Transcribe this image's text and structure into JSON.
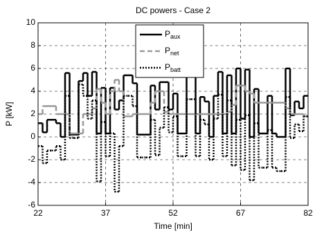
{
  "chart_data": {
    "type": "line",
    "title": "DC powers - Case 2",
    "x_label": "Time [min]",
    "y_label": "P [kW]",
    "drawstyle": "steps-post",
    "grid": true,
    "legend": "upper center",
    "x": [
      22,
      23,
      24,
      25,
      26,
      27,
      28,
      29,
      30,
      31,
      32,
      33,
      34,
      35,
      36,
      37,
      38,
      39,
      40,
      41,
      42,
      43,
      44,
      45,
      46,
      47,
      48,
      49,
      50,
      51,
      52,
      53,
      54,
      55,
      56,
      57,
      58,
      59,
      60,
      61,
      62,
      63,
      64,
      65,
      66,
      67,
      68,
      69,
      70,
      71,
      72,
      73,
      74,
      75,
      76,
      77,
      78,
      79,
      80,
      81,
      82
    ],
    "xlim": [
      22,
      82
    ],
    "xticks": [
      22,
      37,
      52,
      67,
      82
    ],
    "ylim": [
      -6,
      10
    ],
    "yticks": [
      -6,
      -4,
      -2,
      0,
      2,
      4,
      6,
      8,
      10
    ],
    "series": [
      {
        "name": "P",
        "name_sub": "aux",
        "color": "#000000",
        "style": "solid",
        "values": [
          1.2,
          0.4,
          1.5,
          1.5,
          1.2,
          0,
          5.6,
          0.2,
          0.2,
          4.9,
          5.6,
          3.6,
          5.7,
          0.3,
          4.3,
          0.3,
          4.3,
          2.4,
          3.2,
          5.4,
          5.4,
          4.7,
          0.2,
          0.2,
          0.2,
          4.5,
          2.4,
          4.8,
          4.8,
          2.4,
          3.8,
          0.3,
          0.3,
          5.3,
          5.3,
          0.3,
          3.5,
          3.1,
          0,
          3.6,
          5.7,
          0.3,
          5.4,
          0.3,
          6.0,
          1.6,
          5.9,
          0,
          4.2,
          0.3,
          0.3,
          3.6,
          0.3,
          0,
          0,
          6.0,
          1.9,
          3.1,
          2.5,
          3.6,
          3.6
        ]
      },
      {
        "name": "P",
        "name_sub": "net",
        "color": "#999999",
        "style": "dashed",
        "values": [
          2,
          2.7,
          2.7,
          2.7,
          2,
          2,
          2,
          0.3,
          0.3,
          0.3,
          2,
          2,
          2.5,
          4.2,
          3,
          2,
          4,
          5,
          4,
          1.8,
          1.8,
          2,
          2,
          2,
          2,
          3,
          4,
          4,
          2.2,
          2,
          2,
          2,
          2,
          2,
          2,
          2,
          2,
          2,
          2,
          2,
          2,
          2,
          2.2,
          2.8,
          4.5,
          4.5,
          4,
          3.8,
          3,
          3,
          3,
          3,
          3,
          3,
          3,
          2.5,
          2,
          2,
          2,
          1.8,
          1.8
        ]
      },
      {
        "name": "P",
        "name_sub": "batt",
        "color": "#000000",
        "style": "dotted",
        "values": [
          -0.8,
          -2.3,
          -1.2,
          -1.2,
          -0.8,
          -2.0,
          3.6,
          -0.1,
          -0.1,
          4.6,
          3.6,
          1.6,
          3.2,
          -3.9,
          1.3,
          -1.7,
          0.3,
          -4.8,
          -0.8,
          3.6,
          3.6,
          2.7,
          -1.8,
          -1.8,
          -1.8,
          1.5,
          -1.6,
          0.8,
          2.6,
          0.4,
          1.8,
          -1.7,
          -1.7,
          3.3,
          3.3,
          -1.7,
          1.5,
          1.1,
          -2.0,
          1.6,
          3.7,
          -1.7,
          3.2,
          -2.5,
          1.5,
          -2.9,
          1.9,
          -3.8,
          1.2,
          -2.7,
          -2.7,
          0.6,
          -2.7,
          -3.0,
          -3.0,
          3.5,
          -0.1,
          1.1,
          0.5,
          1.8,
          1.8
        ]
      }
    ]
  }
}
